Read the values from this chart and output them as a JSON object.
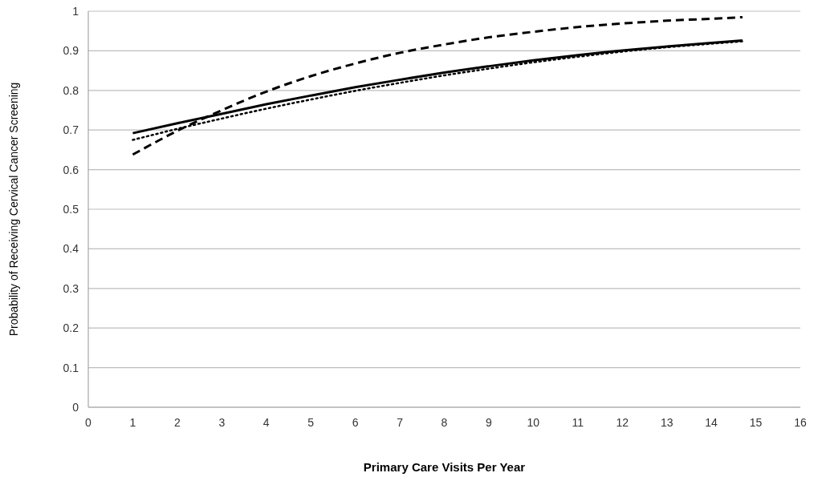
{
  "chart_data": {
    "type": "line",
    "xlabel": "Primary Care Visits Per Year",
    "ylabel": "Probability of Receiving Cervical Cancer Screening",
    "xlim": [
      0,
      16
    ],
    "xticks": [
      0,
      1,
      2,
      3,
      4,
      5,
      6,
      7,
      8,
      9,
      10,
      11,
      12,
      13,
      14,
      15,
      16
    ],
    "ylim": [
      0,
      1
    ],
    "yticks": [
      0,
      0.1,
      0.2,
      0.3,
      0.4,
      0.5,
      0.6,
      0.7,
      0.8,
      0.9,
      1
    ],
    "grid": "y",
    "marker": "none",
    "x": [
      1,
      2,
      3,
      4,
      5,
      6,
      7,
      8,
      9,
      10,
      11,
      12,
      13,
      14,
      14.7
    ],
    "series": [
      {
        "color": "#000000",
        "line_style": "solid",
        "values": [
          0.692,
          0.717,
          0.741,
          0.765,
          0.787,
          0.808,
          0.827,
          0.845,
          0.861,
          0.876,
          0.889,
          0.901,
          0.911,
          0.92,
          0.926
        ]
      },
      {
        "color": "#000000",
        "line_style": "dashed",
        "values": [
          0.638,
          0.698,
          0.75,
          0.797,
          0.836,
          0.868,
          0.895,
          0.916,
          0.934,
          0.948,
          0.96,
          0.969,
          0.976,
          0.981,
          0.985
        ]
      },
      {
        "color": "#000000",
        "line_style": "dotted",
        "values": [
          0.675,
          0.703,
          0.729,
          0.754,
          0.777,
          0.799,
          0.819,
          0.838,
          0.855,
          0.871,
          0.885,
          0.898,
          0.909,
          0.918,
          0.924
        ]
      }
    ]
  }
}
